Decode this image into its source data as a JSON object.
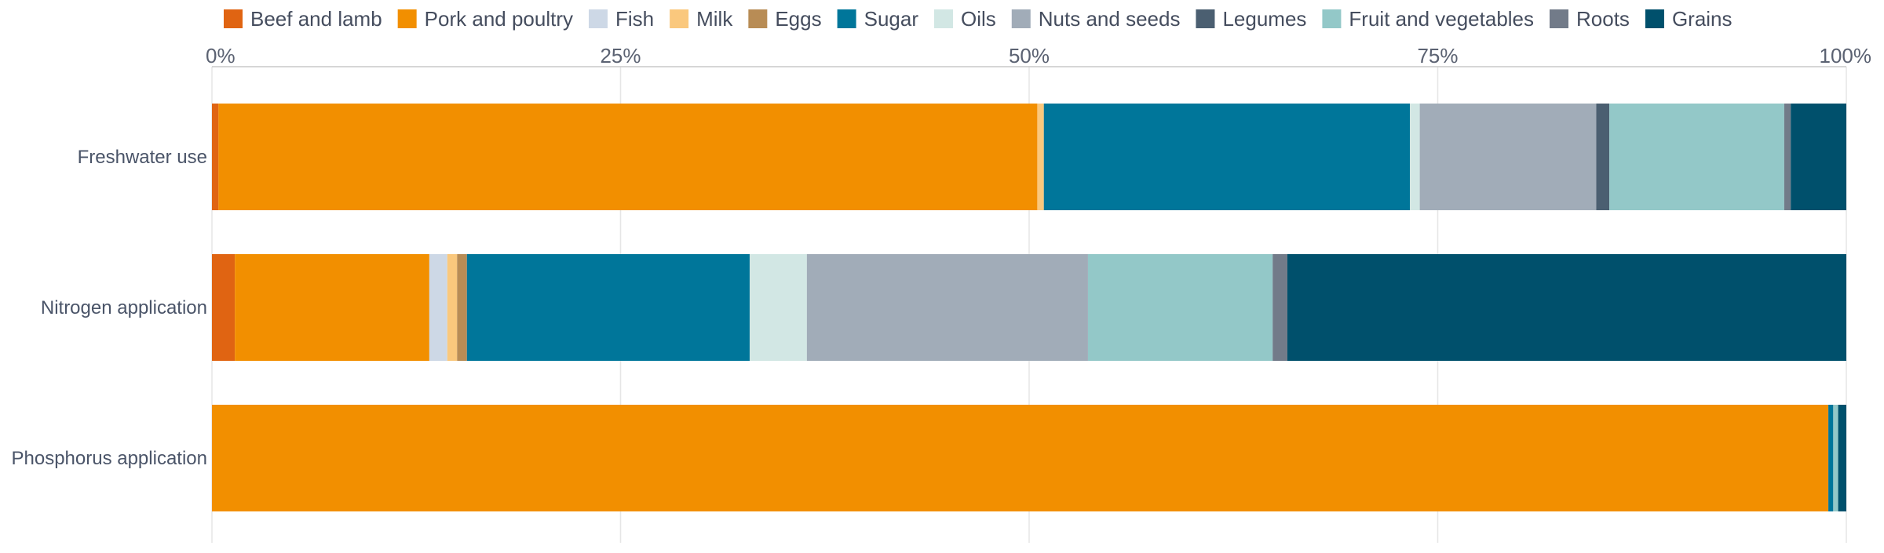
{
  "chart_data": {
    "type": "bar",
    "orientation": "horizontal",
    "stacked": true,
    "normalized": true,
    "xlim": [
      0,
      100
    ],
    "x_ticks": [
      {
        "value": 0,
        "label": "0%"
      },
      {
        "value": 25,
        "label": "25%"
      },
      {
        "value": 50,
        "label": "50%"
      },
      {
        "value": 75,
        "label": "75%"
      },
      {
        "value": 100,
        "label": "100%"
      }
    ],
    "grid": true,
    "legend_position": "top",
    "categories": [
      "Freshwater use",
      "Nitrogen application",
      "Phosphorus application"
    ],
    "series": [
      {
        "name": "Beef and lamb",
        "color": "#e06412",
        "values": [
          0.4,
          1.4,
          0.0
        ]
      },
      {
        "name": "Pork and poultry",
        "color": "#f28f00",
        "values": [
          50.1,
          11.9,
          98.9
        ]
      },
      {
        "name": "Fish",
        "color": "#cdd8e6",
        "values": [
          0.0,
          1.1,
          0.0
        ]
      },
      {
        "name": "Milk",
        "color": "#fac87d",
        "values": [
          0.4,
          0.6,
          0.0
        ]
      },
      {
        "name": "Eggs",
        "color": "#b88c55",
        "values": [
          0.0,
          0.6,
          0.0
        ]
      },
      {
        "name": "Sugar",
        "color": "#00769a",
        "values": [
          22.4,
          17.3,
          0.3
        ]
      },
      {
        "name": "Oils",
        "color": "#d2e7e4",
        "values": [
          0.6,
          3.5,
          0.0
        ]
      },
      {
        "name": "Nuts and seeds",
        "color": "#a1acb8",
        "values": [
          10.8,
          17.2,
          0.0
        ]
      },
      {
        "name": "Legumes",
        "color": "#4b5f71",
        "values": [
          0.8,
          0.0,
          0.0
        ]
      },
      {
        "name": "Fruit and vegetables",
        "color": "#93c8c8",
        "values": [
          10.7,
          11.3,
          0.3
        ]
      },
      {
        "name": "Roots",
        "color": "#727b89",
        "values": [
          0.4,
          0.9,
          0.0
        ]
      },
      {
        "name": "Grains",
        "color": "#00506c",
        "values": [
          3.4,
          34.2,
          0.5
        ]
      }
    ]
  }
}
